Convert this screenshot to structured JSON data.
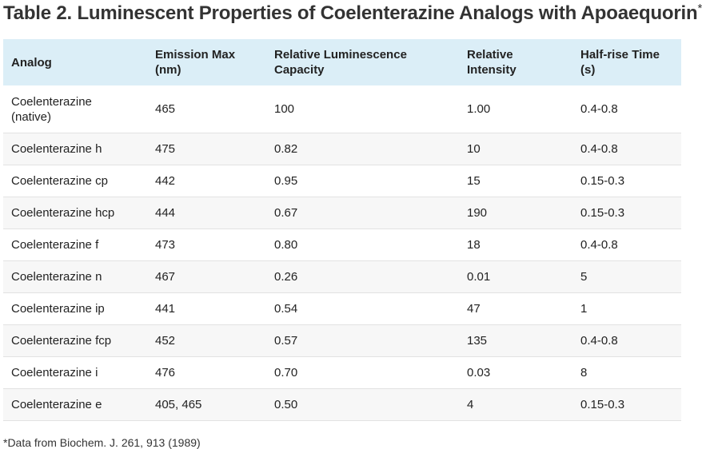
{
  "title": "Table 2. Luminescent Properties of Coelenterazine Analogs with Apoaequorin",
  "title_mark": "*",
  "table": {
    "headers": [
      [
        "Analog"
      ],
      [
        "Emission Max",
        "(nm)"
      ],
      [
        "Relative Luminescence",
        "Capacity"
      ],
      [
        "Relative",
        "Intensity"
      ],
      [
        "Half-rise Time",
        "(s)"
      ]
    ],
    "rows": [
      [
        "Coelenterazine (native)",
        "465",
        "100",
        "1.00",
        "0.4-0.8"
      ],
      [
        "Coelenterazine h",
        "475",
        "0.82",
        "10",
        "0.4-0.8"
      ],
      [
        "Coelenterazine cp",
        "442",
        "0.95",
        "15",
        "0.15-0.3"
      ],
      [
        "Coelenterazine hcp",
        "444",
        "0.67",
        "190",
        "0.15-0.3"
      ],
      [
        "Coelenterazine f",
        "473",
        "0.80",
        "18",
        "0.4-0.8"
      ],
      [
        "Coelenterazine n",
        "467",
        "0.26",
        "0.01",
        "5"
      ],
      [
        "Coelenterazine ip",
        "441",
        "0.54",
        "47",
        "1"
      ],
      [
        "Coelenterazine fcp",
        "452",
        "0.57",
        "135",
        "0.4-0.8"
      ],
      [
        "Coelenterazine i",
        "476",
        "0.70",
        "0.03",
        "8"
      ],
      [
        "Coelenterazine e",
        "405, 465",
        "0.50",
        "4",
        "0.15-0.3"
      ]
    ]
  },
  "footnote": "*Data from Biochem. J. 261, 913 (1989)"
}
